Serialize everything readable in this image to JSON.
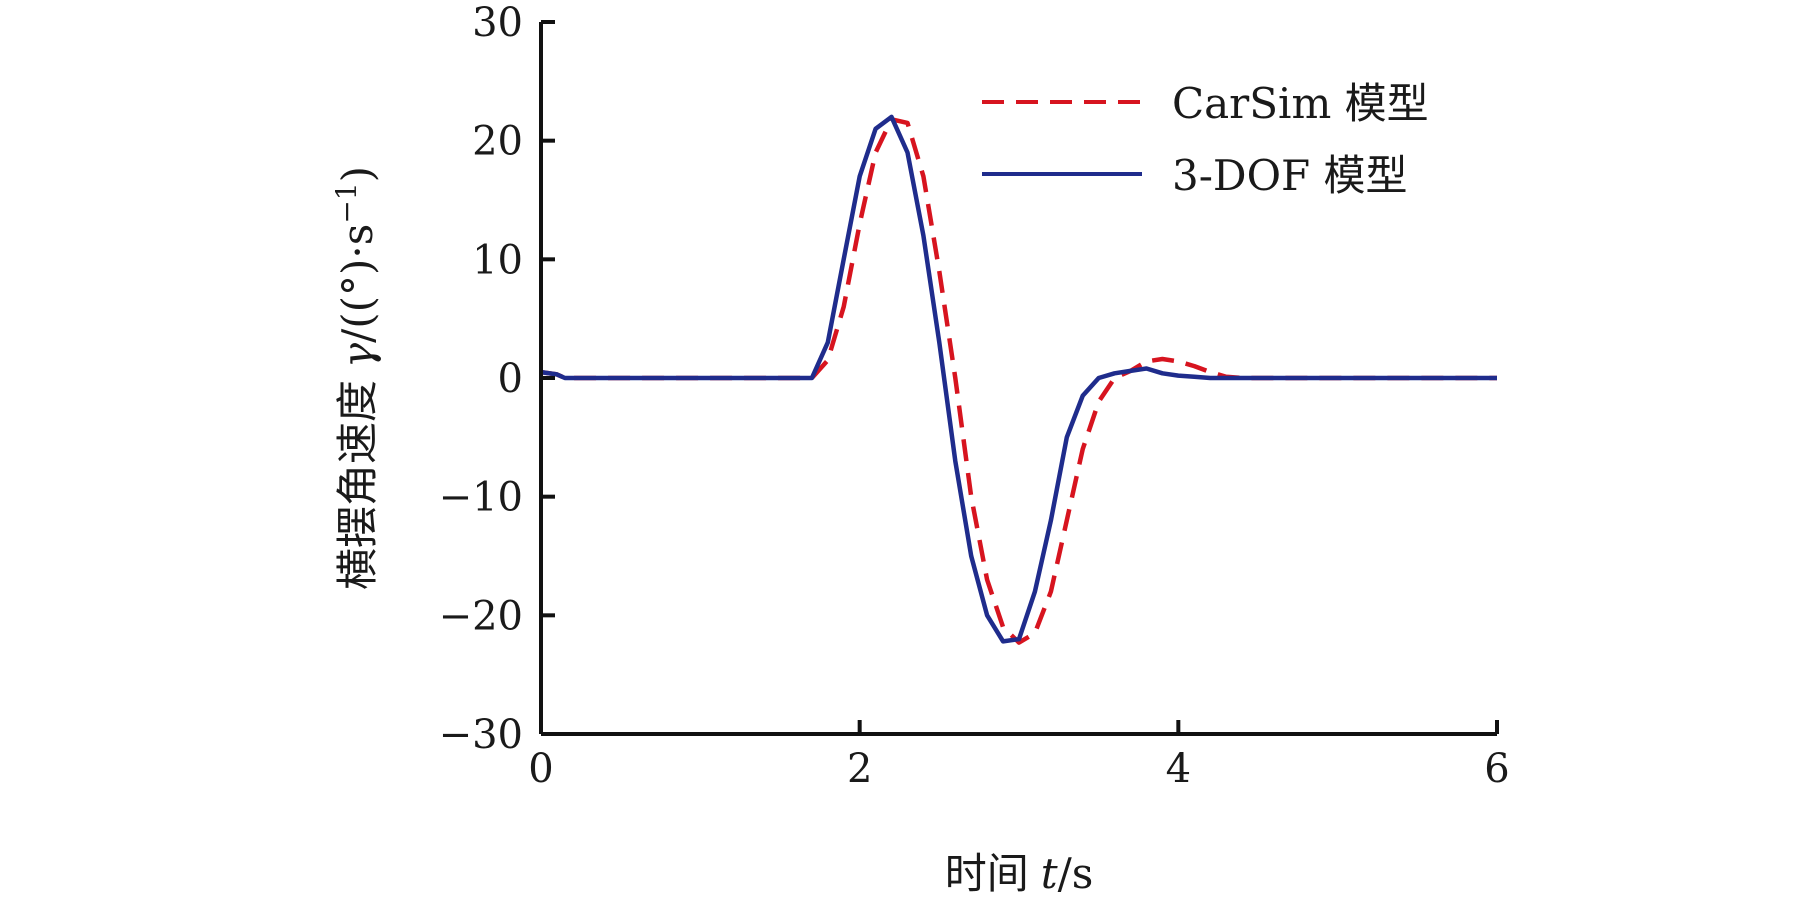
{
  "chart_data": {
    "type": "line",
    "xlabel_prefix": "时间",
    "xlabel_var": "t",
    "xlabel_unit": "/s",
    "ylabel_prefix": "横摆角速度",
    "ylabel_var": "γ",
    "ylabel_unit": "/((°)·s",
    "ylabel_exp": "−1",
    "ylabel_close": ")",
    "xlim": [
      0,
      6
    ],
    "ylim": [
      -30,
      30
    ],
    "xticks": [
      0,
      2,
      4,
      6
    ],
    "xtick_labels": [
      "0",
      "2",
      "4",
      "6"
    ],
    "yticks": [
      30,
      20,
      10,
      0,
      -10,
      -20,
      -30
    ],
    "ytick_labels": [
      "30",
      "20",
      "10",
      "0",
      "−10",
      "−20",
      "−30"
    ],
    "grid": false,
    "legend_position": "top-right",
    "series": [
      {
        "name": "CarSim 模型",
        "color": "#d7141f",
        "style": "dashed",
        "x": [
          0,
          0.1,
          0.15,
          1.7,
          1.8,
          1.9,
          2.0,
          2.1,
          2.2,
          2.3,
          2.4,
          2.5,
          2.6,
          2.7,
          2.8,
          2.9,
          3.0,
          3.1,
          3.2,
          3.3,
          3.4,
          3.5,
          3.6,
          3.7,
          3.8,
          3.9,
          4.0,
          4.1,
          4.2,
          4.3,
          4.4,
          6.0
        ],
        "values": [
          0.5,
          0.3,
          0,
          0,
          1.5,
          6,
          13,
          19,
          21.8,
          21.5,
          17,
          9,
          0,
          -10,
          -17,
          -21,
          -22.3,
          -21.5,
          -18,
          -12,
          -6,
          -2,
          0,
          0.6,
          1.4,
          1.6,
          1.4,
          1.0,
          0.5,
          0.1,
          0,
          0
        ]
      },
      {
        "name": "3-DOF 模型",
        "color": "#1f2c8c",
        "style": "solid",
        "x": [
          0,
          0.1,
          0.15,
          1.7,
          1.8,
          1.9,
          2.0,
          2.1,
          2.2,
          2.3,
          2.4,
          2.5,
          2.6,
          2.7,
          2.8,
          2.9,
          3.0,
          3.1,
          3.2,
          3.3,
          3.4,
          3.5,
          3.6,
          3.7,
          3.8,
          3.9,
          4.0,
          4.1,
          4.2,
          6.0
        ],
        "values": [
          0.5,
          0.3,
          0,
          0,
          3,
          10,
          17,
          21,
          22,
          19,
          12,
          3,
          -7,
          -15,
          -20,
          -22.2,
          -22,
          -18,
          -12,
          -5,
          -1.5,
          0,
          0.4,
          0.6,
          0.8,
          0.4,
          0.2,
          0.1,
          0,
          0
        ]
      }
    ]
  }
}
